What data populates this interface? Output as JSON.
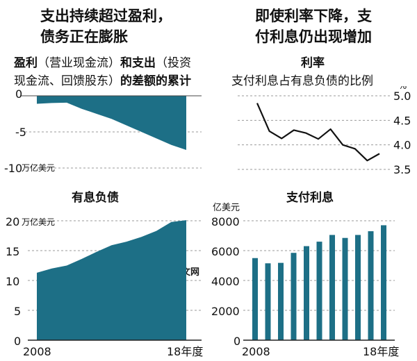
{
  "headlines": {
    "left": [
      "支出持续超过盈利，",
      "债务正在膨胀"
    ],
    "right": [
      "即使利率下降，支",
      "付利息仍出现增加"
    ]
  },
  "colors": {
    "fill": "#1d6f86",
    "grid": "#999999",
    "bar": "#1d6f86",
    "line": "#111111"
  },
  "watermark": "日经中文网",
  "chart_data": [
    {
      "id": "cumulative",
      "type": "area",
      "title_bold1": "盈利",
      "title_normal1": "（营业现金流）",
      "title_bold2": "和支出",
      "title_normal2": "（投资",
      "title_line2_normal": "现金流、回馈股东）",
      "title_line2_bold": "的差额的累计",
      "unit": "万亿美元",
      "x": [
        2008,
        2009,
        2010,
        2011,
        2012,
        2013,
        2014,
        2015,
        2016,
        2017,
        2018
      ],
      "values": [
        -1.1,
        -1.0,
        -0.95,
        -1.8,
        -2.5,
        -3.2,
        -4.1,
        -5.0,
        -5.9,
        -6.8,
        -7.5
      ],
      "ylim": [
        -10,
        0
      ],
      "yticks": [
        0,
        -5,
        -10
      ],
      "ytick_labels": [
        "0",
        "-5",
        "-10"
      ]
    },
    {
      "id": "rate",
      "type": "line",
      "title": "利率",
      "subtitle": "支付利息占有息负债的比例",
      "unit": "%",
      "x": [
        2008,
        2009,
        2010,
        2011,
        2012,
        2013,
        2014,
        2015,
        2016,
        2017,
        2018
      ],
      "values": [
        4.85,
        4.28,
        4.13,
        4.3,
        4.24,
        4.12,
        4.32,
        4.0,
        3.92,
        3.68,
        3.82
      ],
      "ylim": [
        3.5,
        5.0
      ],
      "yticks": [
        5.0,
        4.5,
        4.0,
        3.5
      ],
      "ytick_labels": [
        "5.0",
        "4.5",
        "4.0",
        "3.5"
      ]
    },
    {
      "id": "debt",
      "type": "area",
      "title": "有息负债",
      "unit": "万亿美元",
      "x": [
        2008,
        2009,
        2010,
        2011,
        2012,
        2013,
        2014,
        2015,
        2016,
        2017,
        2018
      ],
      "values": [
        11.3,
        12.0,
        12.5,
        13.6,
        14.8,
        15.9,
        16.5,
        17.3,
        18.3,
        19.8,
        20.1
      ],
      "ylim": [
        0,
        20
      ],
      "yticks": [
        20,
        15,
        10,
        5,
        0
      ],
      "ytick_labels": [
        "20",
        "15",
        "10",
        "5",
        "0"
      ],
      "xtick_labels": [
        "2008",
        "18年度"
      ]
    },
    {
      "id": "interest",
      "type": "bar",
      "title": "支付利息",
      "unit": "亿美元",
      "x": [
        2008,
        2009,
        2010,
        2011,
        2012,
        2013,
        2014,
        2015,
        2016,
        2017,
        2018
      ],
      "values": [
        5500,
        5150,
        5180,
        5850,
        6300,
        6600,
        7050,
        6850,
        7050,
        7300,
        7700
      ],
      "ylim": [
        0,
        8000
      ],
      "yticks": [
        8000,
        6000,
        4000,
        2000,
        0
      ],
      "ytick_labels": [
        "8000",
        "6000",
        "4000",
        "2000",
        "0"
      ],
      "xtick_labels": [
        "2008",
        "18年度"
      ]
    }
  ]
}
